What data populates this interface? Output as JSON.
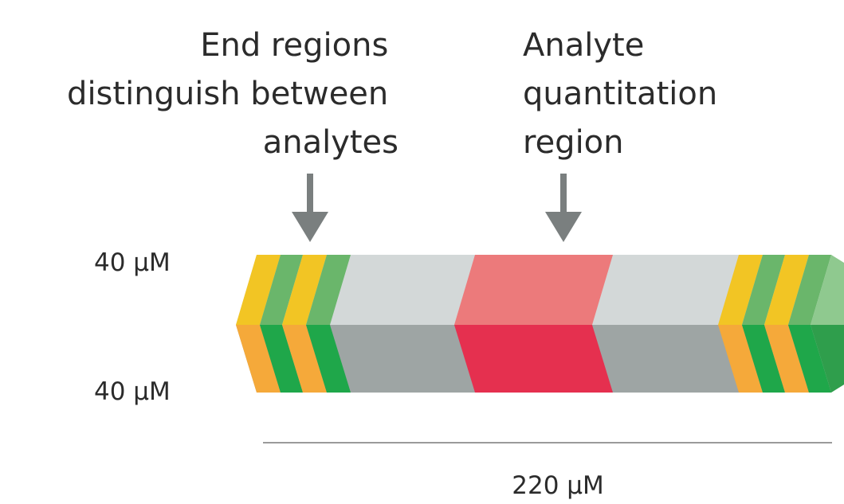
{
  "labels": {
    "end_regions": [
      "End regions",
      "distinguish between",
      "analytes"
    ],
    "analyte_region": [
      "Analyte",
      "quantitation",
      "region"
    ],
    "top_width": "40 µM",
    "bottom_width": "40 µM",
    "length": "220 µM"
  },
  "colors": {
    "yellow": "#f2c524",
    "orange": "#f5a93a",
    "green_light": "#6ab66b",
    "green_dark": "#1fa74a",
    "gray_light": "#d3d8d8",
    "gray_dark": "#9ea5a4",
    "red_light": "#ec7a7b",
    "red_dark": "#e5304f",
    "arrow": "#7a7f7f",
    "rule": "#9a9a9a"
  },
  "icons": {
    "end_arrow": "arrow-down-icon",
    "analyte_arrow": "arrow-down-icon"
  }
}
